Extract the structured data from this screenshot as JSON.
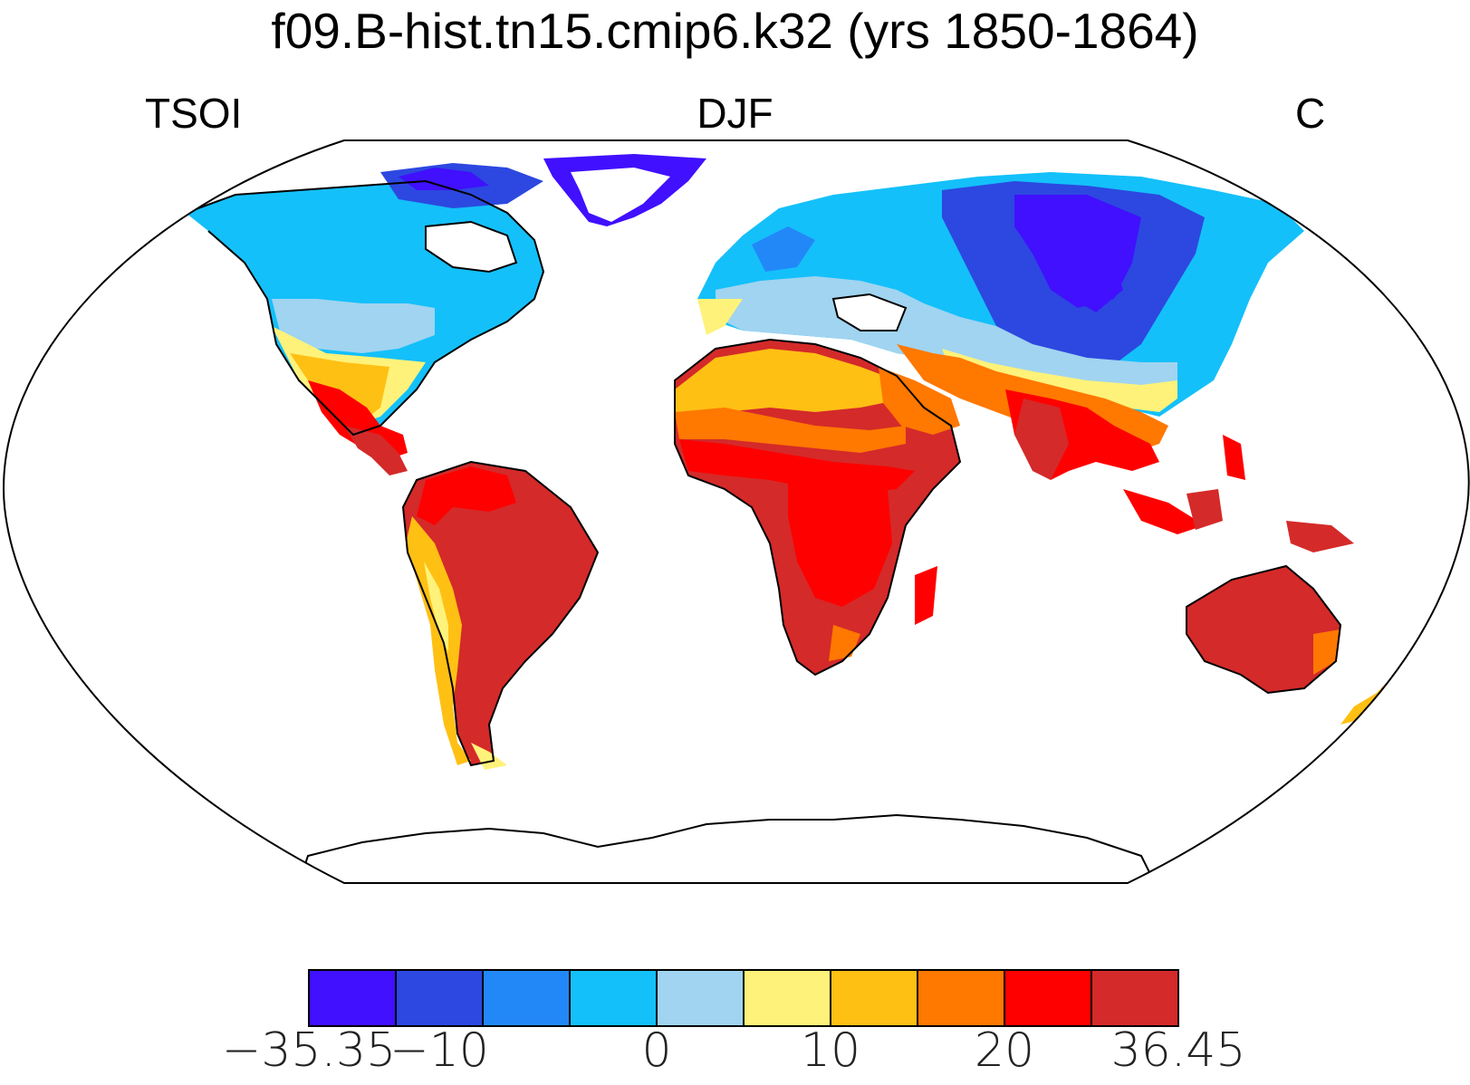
{
  "title": "f09.B-hist.tn15.cmip6.k32 (yrs 1850-1864)",
  "subtitle": {
    "left": "TSOI",
    "center": "DJF",
    "right": "C"
  },
  "colorbar": {
    "colors": [
      "#4010FF",
      "#2C48E0",
      "#2288F8",
      "#14C0FA",
      "#A0D4F0",
      "#FFF27A",
      "#FFC014",
      "#FF7800",
      "#FF0000",
      "#D42A2A"
    ],
    "labels": [
      "−35.35",
      "−10",
      "0",
      "10",
      "20",
      "36.45"
    ]
  },
  "map_data": {
    "projection": "Robinson",
    "variable": "TSOI",
    "season": "DJF",
    "units": "C",
    "range": [
      -35.35,
      36.45
    ],
    "ocean_fill": "#ffffff",
    "coastlines": true
  }
}
